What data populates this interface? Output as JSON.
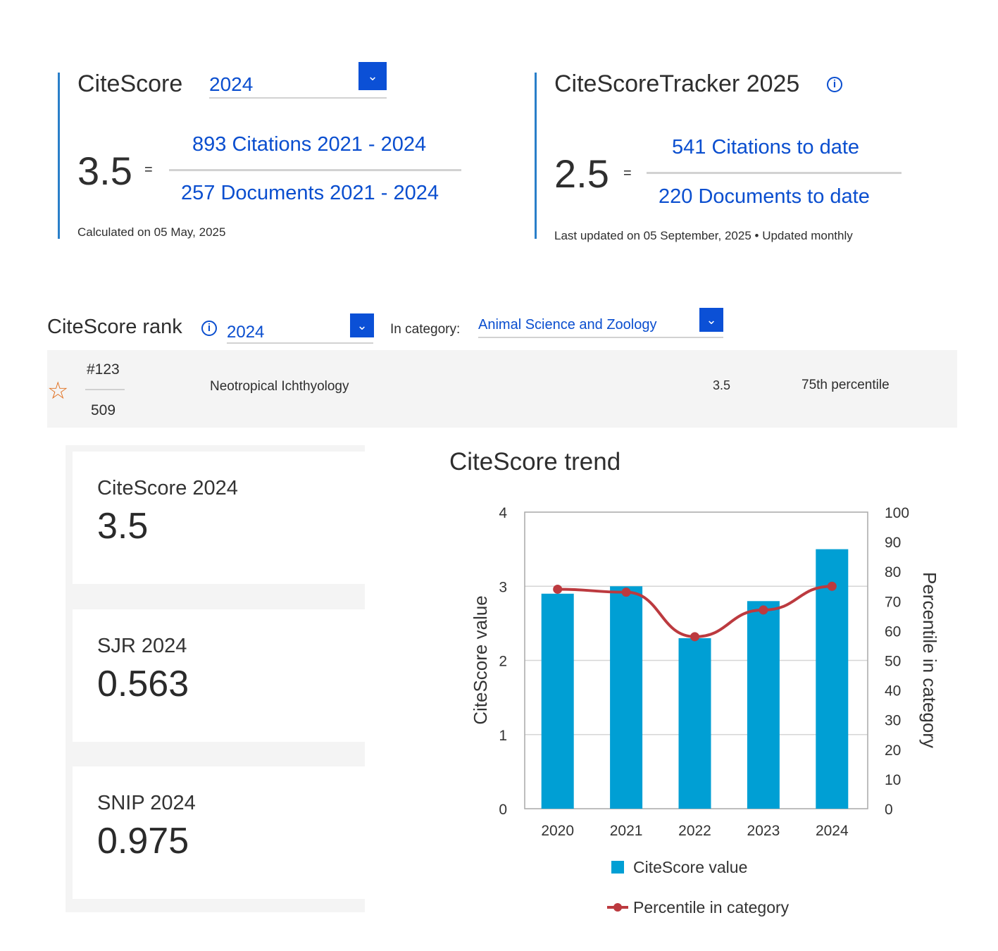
{
  "citescore": {
    "title": "CiteScore",
    "year": "2024",
    "value": "3.5",
    "eq": "=",
    "numerator": "893 Citations 2021 - 2024",
    "denominator": "257 Documents 2021 - 2024",
    "calculated": "Calculated on 05 May, 2025"
  },
  "tracker": {
    "title": "CiteScoreTracker 2025",
    "value": "2.5",
    "eq": "=",
    "numerator": "541 Citations to date",
    "denominator": "220 Documents to date",
    "updated": "Last updated on 05 September, 2025",
    "bullet": "•",
    "frequency": "Updated monthly"
  },
  "rank": {
    "title": "CiteScore rank",
    "year": "2024",
    "category_label": "In category:",
    "category": "Animal Science and Zoology",
    "position": "#123",
    "total": "509",
    "journal": "Neotropical Ichthyology",
    "score": "3.5",
    "percentile": "75th percentile"
  },
  "metrics": [
    {
      "label": "CiteScore 2024",
      "value": "3.5"
    },
    {
      "label": "SJR 2024",
      "value": "0.563"
    },
    {
      "label": "SNIP 2024",
      "value": "0.975"
    }
  ],
  "colors": {
    "bar": "#009fd4",
    "line": "#bc3a3f",
    "accent": "#0b50d6",
    "star": "#e07020"
  },
  "chart_data": {
    "type": "bar",
    "title": "CiteScore trend",
    "categories": [
      "2020",
      "2021",
      "2022",
      "2023",
      "2024"
    ],
    "series": [
      {
        "name": "CiteScore value",
        "type": "bar",
        "axis": "left",
        "values": [
          2.9,
          3.0,
          2.3,
          2.8,
          3.5
        ]
      },
      {
        "name": "Percentile in category",
        "type": "line",
        "axis": "right",
        "values": [
          74,
          73,
          58,
          67,
          75
        ]
      }
    ],
    "ylabel": "CiteScore value",
    "y2label": "Percentile in category",
    "ylim": [
      0,
      4
    ],
    "y2lim": [
      0,
      100
    ],
    "yticks": [
      "0",
      "1",
      "2",
      "3",
      "4"
    ],
    "y2ticks": [
      "0",
      "10",
      "20",
      "30",
      "40",
      "50",
      "60",
      "70",
      "80",
      "90",
      "100"
    ],
    "grid": true,
    "legend": "bottom"
  }
}
